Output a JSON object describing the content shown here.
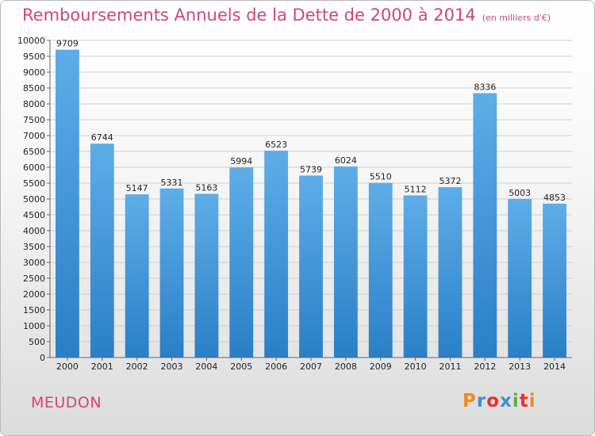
{
  "header": {
    "title": "Remboursements Annuels de la Dette de 2000 à 2014",
    "subtitle": "(en milliers d'€)"
  },
  "footer": {
    "commune": "MEUDON",
    "logo": "Proxiti",
    "logo_colors": [
      "#f08a1c",
      "#3a8fd6",
      "#e8302c",
      "#3a8fd6",
      "#57b33a",
      "#e8302c",
      "#f08a1c"
    ]
  },
  "colors": {
    "accent": "#d1457a",
    "bar_top": "#5dade8",
    "bar_bottom": "#2a7fc6"
  },
  "chart_data": {
    "type": "bar",
    "title": "Remboursements Annuels de la Dette de 2000 à 2014",
    "xlabel": "",
    "ylabel": "",
    "categories": [
      "2000",
      "2001",
      "2002",
      "2003",
      "2004",
      "2005",
      "2006",
      "2007",
      "2008",
      "2009",
      "2010",
      "2011",
      "2012",
      "2013",
      "2014"
    ],
    "values": [
      9709,
      6744,
      5147,
      5331,
      5163,
      5994,
      6523,
      5739,
      6024,
      5510,
      5112,
      5372,
      8336,
      5003,
      4853
    ],
    "ylim": [
      0,
      10000
    ],
    "yticks": [
      0,
      500,
      1000,
      1500,
      2000,
      2500,
      3000,
      3500,
      4000,
      4500,
      5000,
      5500,
      6000,
      6500,
      7000,
      7500,
      8000,
      8500,
      9000,
      9500,
      10000
    ],
    "grid": true
  }
}
